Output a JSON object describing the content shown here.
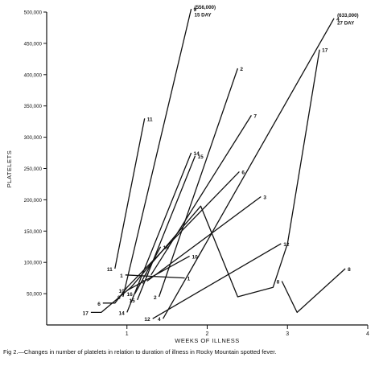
{
  "caption": "Fig 2.—Changes in number of platelets in relation to duration of illness in Rocky Mountain spotted fever.",
  "chart_data": {
    "type": "line",
    "title": "",
    "xlabel": "WEEKS OF ILLNESS",
    "ylabel": "PLATELETS",
    "xlim": [
      0,
      4
    ],
    "ylim": [
      0,
      500000
    ],
    "x_ticks": [
      1,
      2,
      3,
      4
    ],
    "x_tick_labels": [
      "1",
      "2",
      "3",
      "4"
    ],
    "y_ticks": [
      50000,
      100000,
      150000,
      200000,
      250000,
      300000,
      350000,
      400000,
      450000,
      500000
    ],
    "y_tick_labels": [
      "50,000",
      "100,000",
      "150,000",
      "200,000",
      "250,000",
      "300,000",
      "350,000",
      "400,000",
      "450,000",
      "500,000"
    ],
    "grid": false,
    "legend": "none",
    "line_color": "#111111",
    "series": [
      {
        "name": "1",
        "points": [
          [
            0.98,
            80000
          ],
          [
            1.72,
            75000
          ]
        ]
      },
      {
        "name": "2",
        "points": [
          [
            1.4,
            45000
          ],
          [
            2.38,
            410000
          ]
        ]
      },
      {
        "name": "3",
        "points": [
          [
            1.25,
            70000
          ],
          [
            2.67,
            205000
          ]
        ]
      },
      {
        "name": "4",
        "points": [
          [
            1.45,
            10000
          ],
          [
            3.58,
            490000
          ]
        ]
      },
      {
        "name": "6",
        "points": [
          [
            0.7,
            35000
          ],
          [
            0.85,
            35000
          ],
          [
            1.0,
            60000
          ],
          [
            2.4,
            245000
          ]
        ]
      },
      {
        "name": "7",
        "points": [
          [
            1.3,
            80000
          ],
          [
            2.55,
            335000
          ]
        ]
      },
      {
        "name": "8",
        "points": [
          [
            2.93,
            70000
          ],
          [
            3.12,
            20000
          ],
          [
            3.72,
            90000
          ]
        ]
      },
      {
        "name": "9",
        "points": [
          [
            0.95,
            45000
          ],
          [
            1.8,
            505000
          ]
        ]
      },
      {
        "name": "10",
        "points": [
          [
            1.0,
            55000
          ],
          [
            1.78,
            110000
          ]
        ]
      },
      {
        "name": "11",
        "points": [
          [
            0.85,
            90000
          ],
          [
            1.22,
            330000
          ]
        ]
      },
      {
        "name": "12",
        "points": [
          [
            1.32,
            10000
          ],
          [
            2.92,
            130000
          ]
        ]
      },
      {
        "name": "14",
        "points": [
          [
            1.0,
            20000
          ],
          [
            1.8,
            275000
          ]
        ]
      },
      {
        "name": "15",
        "points": [
          [
            1.13,
            40000
          ],
          [
            1.85,
            270000
          ]
        ]
      },
      {
        "name": "16",
        "points": [
          [
            1.1,
            50000
          ],
          [
            1.42,
            125000
          ]
        ]
      },
      {
        "name": "17",
        "points": [
          [
            0.55,
            20000
          ],
          [
            0.68,
            20000
          ],
          [
            1.05,
            60000
          ],
          [
            1.92,
            190000
          ],
          [
            2.38,
            45000
          ],
          [
            2.82,
            60000
          ],
          [
            3.0,
            130000
          ],
          [
            3.4,
            440000
          ]
        ]
      }
    ],
    "annotations": [
      {
        "text": "(556,000)",
        "x": 1.84,
        "y": 505000
      },
      {
        "text": "15 DAY",
        "x": 1.84,
        "y": 493000
      },
      {
        "text": "(633,000)",
        "x": 3.62,
        "y": 492000
      },
      {
        "text": "27 DAY",
        "x": 3.62,
        "y": 480000
      }
    ]
  }
}
